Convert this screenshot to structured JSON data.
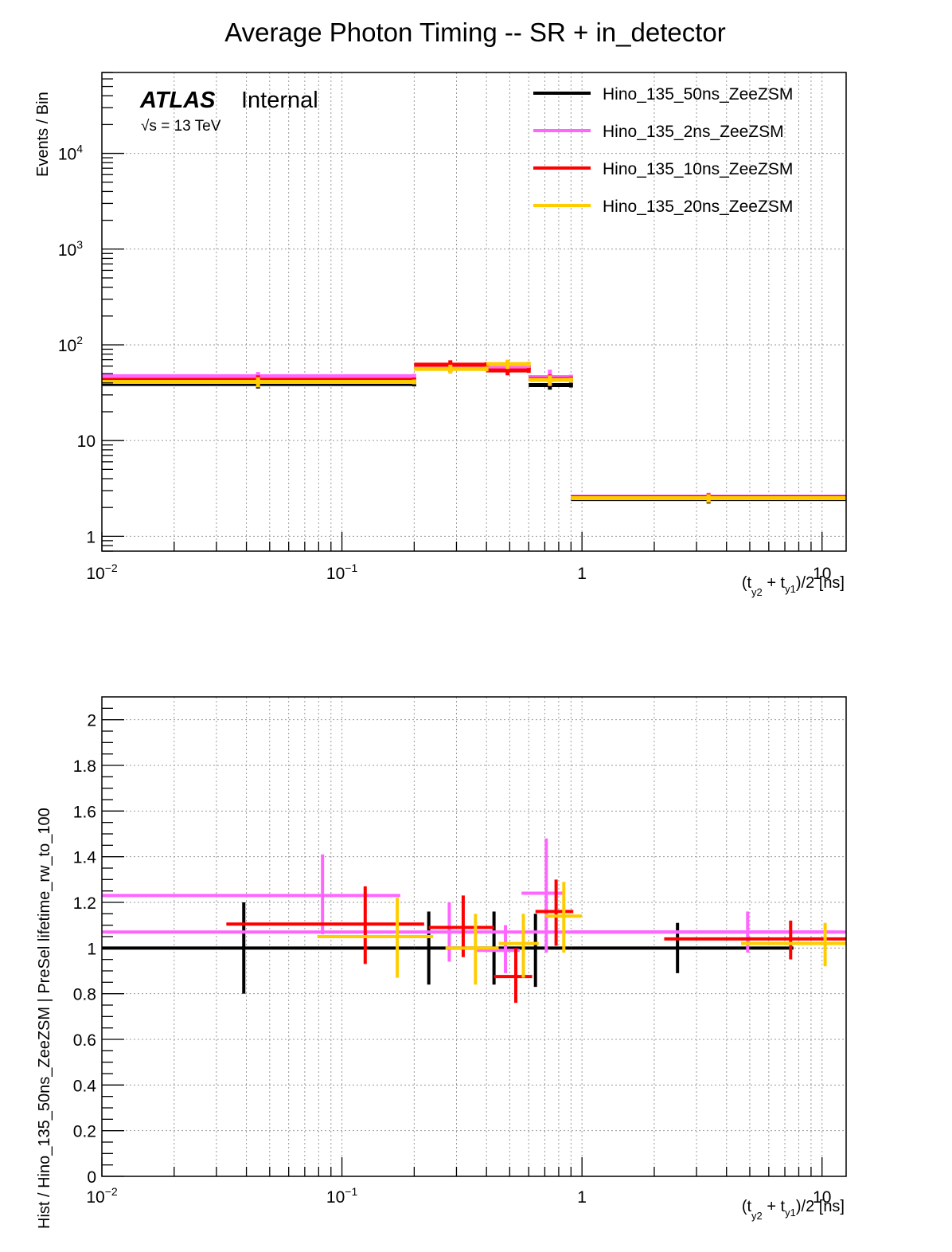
{
  "chart_data": [
    {
      "type": "line",
      "subtype": "step-histogram",
      "title": "Average Photon Timing -- SR + in_detector",
      "label_experiment": "ATLAS",
      "label_status": "Internal",
      "label_energy": "√s = 13 TeV",
      "xlabel": "(t_y2 + t_y1)/2 [ns]",
      "xlabel_parts": {
        "open": "(t",
        "sub1": "y2",
        "mid": " + t",
        "sub2": "y1",
        "close": ")/2 [ns]"
      },
      "ylabel": "Events / Bin",
      "xscale": "log",
      "yscale": "log",
      "xlim": [
        0.01,
        12.6
      ],
      "ylim": [
        0.7,
        70000
      ],
      "xticks": [
        {
          "v": 0.01,
          "base": "10",
          "exp": "−2"
        },
        {
          "v": 0.1,
          "base": "10",
          "exp": "−1"
        },
        {
          "v": 1,
          "base": "1",
          "exp": ""
        },
        {
          "v": 10,
          "base": "10",
          "exp": ""
        }
      ],
      "yticks": [
        {
          "v": 1,
          "base": "1",
          "exp": ""
        },
        {
          "v": 10,
          "base": "10",
          "exp": ""
        },
        {
          "v": 100,
          "base": "10",
          "exp": "2"
        },
        {
          "v": 1000,
          "base": "10",
          "exp": "3"
        },
        {
          "v": 10000,
          "base": "10",
          "exp": "4"
        }
      ],
      "grid": true,
      "legend_position": "top-right",
      "bin_edges": [
        0.01,
        0.2,
        0.4,
        0.6,
        0.9,
        12.6
      ],
      "series": [
        {
          "name": "Hino_135_50ns_ZeeZSM",
          "color": "#000000",
          "values": [
            39,
            58,
            58,
            38,
            2.45
          ],
          "errors": [
            4,
            6,
            6,
            4,
            0.25
          ]
        },
        {
          "name": "Hino_135_2ns_ZeeZSM",
          "color": "#ff66ff",
          "values": [
            47,
            59,
            58,
            46,
            2.6
          ],
          "errors": [
            5,
            6,
            6,
            9,
            0.25
          ]
        },
        {
          "name": "Hino_135_10ns_ZeeZSM",
          "color": "#ff0000",
          "values": [
            43,
            62,
            54,
            44,
            2.55
          ],
          "errors": [
            5,
            7,
            6,
            5,
            0.25
          ]
        },
        {
          "name": "Hino_135_20ns_ZeeZSM",
          "color": "#ffcc00",
          "values": [
            41,
            56,
            63,
            43,
            2.5
          ],
          "errors": [
            5,
            6,
            7,
            5,
            0.25
          ]
        }
      ]
    },
    {
      "type": "scatter",
      "subtype": "ratio-with-xy-errors",
      "xlabel": "(t_y2 + t_y1)/2 [ns]",
      "xlabel_parts": {
        "open": "(t",
        "sub1": "y2",
        "mid": " + t",
        "sub2": "y1",
        "close": ")/2 [ns]"
      },
      "ylabel": "Hist / Hino_135_50ns_ZeeZSM | PreSel lifetime_rw_to_100",
      "xscale": "log",
      "yscale": "linear",
      "xlim": [
        0.01,
        12.6
      ],
      "ylim": [
        0,
        2.1
      ],
      "xticks": [
        {
          "v": 0.01,
          "base": "10",
          "exp": "−2"
        },
        {
          "v": 0.1,
          "base": "10",
          "exp": "−1"
        },
        {
          "v": 1,
          "base": "1",
          "exp": ""
        },
        {
          "v": 10,
          "base": "10",
          "exp": ""
        }
      ],
      "yticks": [
        0,
        0.2,
        0.4,
        0.6,
        0.8,
        1,
        1.2,
        1.4,
        1.6,
        1.8,
        2
      ],
      "ytick_labels": [
        "0",
        "0.2",
        "0.4",
        "0.6",
        "0.8",
        "1",
        "1.2",
        "1.4",
        "1.6",
        "1.8",
        "2"
      ],
      "grid": true,
      "series": [
        {
          "name": "Hino_135_50ns_ZeeZSM",
          "color": "#000000",
          "points": [
            {
              "x": 0.039,
              "xlo": 0.01,
              "xhi": 0.2,
              "y": 1.0,
              "ylo": 0.8,
              "yhi": 1.2
            },
            {
              "x": 0.23,
              "xlo": 0.2,
              "xhi": 0.42,
              "y": 1.0,
              "ylo": 0.84,
              "yhi": 1.16
            },
            {
              "x": 0.43,
              "xlo": 0.42,
              "xhi": 0.64,
              "y": 1.0,
              "ylo": 0.84,
              "yhi": 1.16
            },
            {
              "x": 0.64,
              "xlo": 0.64,
              "xhi": 0.9,
              "y": 1.0,
              "ylo": 0.83,
              "yhi": 1.15
            },
            {
              "x": 2.5,
              "xlo": 0.9,
              "xhi": 7.6,
              "y": 1.0,
              "ylo": 0.89,
              "yhi": 1.11
            }
          ]
        },
        {
          "name": "Hino_135_2ns_ZeeZSM",
          "color": "#ff66ff",
          "points": [
            {
              "x": 0.083,
              "xlo": 0.01,
              "xhi": 0.175,
              "y": 1.23,
              "ylo": 1.06,
              "yhi": 1.41
            },
            {
              "x": 0.28,
              "xlo": 0.01,
              "xhi": 12.6,
              "y": 1.07,
              "ylo": 0.94,
              "yhi": 1.2
            },
            {
              "x": 0.48,
              "xlo": 0.36,
              "xhi": 0.55,
              "y": 0.99,
              "ylo": 0.89,
              "yhi": 1.1
            },
            {
              "x": 0.71,
              "xlo": 0.56,
              "xhi": 0.83,
              "y": 1.24,
              "ylo": 0.98,
              "yhi": 1.48
            },
            {
              "x": 4.9,
              "xlo": 0.9,
              "xhi": 11.3,
              "y": 1.07,
              "ylo": 0.98,
              "yhi": 1.16
            }
          ]
        },
        {
          "name": "Hino_135_10ns_ZeeZSM",
          "color": "#ff0000",
          "points": [
            {
              "x": 0.125,
              "xlo": 0.033,
              "xhi": 0.22,
              "y": 1.105,
              "ylo": 0.93,
              "yhi": 1.27
            },
            {
              "x": 0.32,
              "xlo": 0.23,
              "xhi": 0.43,
              "y": 1.09,
              "ylo": 0.96,
              "yhi": 1.23
            },
            {
              "x": 0.53,
              "xlo": 0.43,
              "xhi": 0.62,
              "y": 0.875,
              "ylo": 0.76,
              "yhi": 1.0
            },
            {
              "x": 0.78,
              "xlo": 0.64,
              "xhi": 0.92,
              "y": 1.16,
              "ylo": 1.01,
              "yhi": 1.3
            },
            {
              "x": 7.4,
              "xlo": 2.2,
              "xhi": 12.6,
              "y": 1.04,
              "ylo": 0.95,
              "yhi": 1.12
            }
          ]
        },
        {
          "name": "Hino_135_20ns_ZeeZSM",
          "color": "#ffcc00",
          "points": [
            {
              "x": 0.17,
              "xlo": 0.079,
              "xhi": 0.24,
              "y": 1.05,
              "ylo": 0.87,
              "yhi": 1.22
            },
            {
              "x": 0.36,
              "xlo": 0.27,
              "xhi": 0.45,
              "y": 1.0,
              "ylo": 0.84,
              "yhi": 1.15
            },
            {
              "x": 0.57,
              "xlo": 0.45,
              "xhi": 0.66,
              "y": 1.02,
              "ylo": 0.87,
              "yhi": 1.15
            },
            {
              "x": 0.84,
              "xlo": 0.7,
              "xhi": 1.0,
              "y": 1.14,
              "ylo": 0.98,
              "yhi": 1.29
            },
            {
              "x": 10.3,
              "xlo": 4.6,
              "xhi": 12.6,
              "y": 1.02,
              "ylo": 0.92,
              "yhi": 1.11
            }
          ]
        }
      ]
    }
  ]
}
